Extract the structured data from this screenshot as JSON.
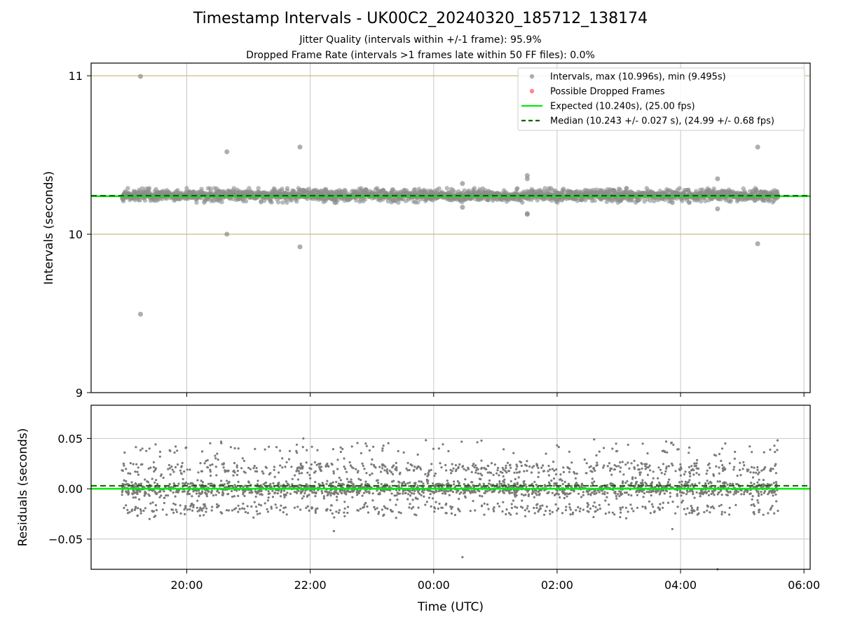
{
  "chart_data": [
    {
      "type": "scatter",
      "title": "Timestamp Intervals - UK00C2_20240320_185712_138174",
      "subtitle_lines": [
        "Jitter Quality (intervals within +/-1 frame): 95.9%",
        "Dropped Frame Rate (intervals >1 frames late within 50 FF files): 0.0%"
      ],
      "xlabel": "",
      "ylabel": "Intervals (seconds)",
      "ylim": [
        9,
        11.08
      ],
      "yticks": [
        9,
        10,
        11
      ],
      "ytick_labels": [
        "9",
        "10",
        "11"
      ],
      "xlim": [
        "18:27",
        "06:06"
      ],
      "x_tick_positions": [
        "20:00",
        "22:00",
        "00:00",
        "02:00",
        "04:00",
        "06:00"
      ],
      "grid": true,
      "legend_position": "top-right",
      "data_range": {
        "x_start": "18:57",
        "x_end": "05:35"
      },
      "legend": [
        {
          "key": "intervals",
          "label": "Intervals, max (10.996s), min (9.495s)",
          "marker": "point",
          "color": "#8c8c8c"
        },
        {
          "key": "dropped",
          "label": "Possible Dropped Frames",
          "marker": "point",
          "color": "#ff5555"
        },
        {
          "key": "expected",
          "label": "Expected (10.240s), (25.00 fps)",
          "marker": "solid-line",
          "color": "#00ee00"
        },
        {
          "key": "median",
          "label": "Median (10.243 +/- 0.027 s), (24.99 +/- 0.68 fps)",
          "marker": "dashed-line",
          "color": "#006400"
        }
      ],
      "expected_interval": 10.24,
      "median_interval": 10.243,
      "reference_lines": [
        10,
        11
      ],
      "typical_band": {
        "center": 10.245,
        "min": 10.2,
        "max": 10.29
      },
      "outliers": [
        {
          "x": "19:15",
          "y": 10.996
        },
        {
          "x": "19:15",
          "y": 9.495
        },
        {
          "x": "20:39",
          "y": 10.52
        },
        {
          "x": "20:39",
          "y": 10.0
        },
        {
          "x": "21:50",
          "y": 10.55
        },
        {
          "x": "21:50",
          "y": 9.92
        },
        {
          "x": "22:24",
          "y": 10.2
        },
        {
          "x": "00:28",
          "y": 10.32
        },
        {
          "x": "00:28",
          "y": 10.17
        },
        {
          "x": "01:31",
          "y": 10.37
        },
        {
          "x": "01:31",
          "y": 10.35
        },
        {
          "x": "01:31",
          "y": 10.13
        },
        {
          "x": "01:31",
          "y": 10.125
        },
        {
          "x": "03:52",
          "y": 10.2
        },
        {
          "x": "04:36",
          "y": 10.35
        },
        {
          "x": "04:36",
          "y": 10.16
        },
        {
          "x": "05:15",
          "y": 10.55
        },
        {
          "x": "05:15",
          "y": 9.94
        }
      ],
      "colors": {
        "intervals": "#8c8c8c",
        "expected": "#00ee00",
        "median": "#006400",
        "refline": "#c8b46e",
        "grid": "#c8c8c8"
      }
    },
    {
      "type": "scatter",
      "title": "",
      "xlabel": "Time (UTC)",
      "ylabel": "Residuals (seconds)",
      "ylim": [
        -0.08,
        0.083
      ],
      "yticks": [
        -0.05,
        0.0,
        0.05
      ],
      "ytick_labels": [
        "−0.05",
        "0.00",
        "0.05"
      ],
      "xlim": [
        "18:27",
        "06:06"
      ],
      "xticks": [
        "20:00",
        "22:00",
        "00:00",
        "02:00",
        "04:00",
        "06:00"
      ],
      "grid": true,
      "data_range": {
        "x_start": "18:57",
        "x_end": "05:35"
      },
      "clusters": [
        {
          "center": 0.0,
          "spread": 0.004,
          "share": 0.62
        },
        {
          "center": 0.02,
          "spread": 0.004,
          "share": 0.2
        },
        {
          "center": -0.02,
          "spread": 0.004,
          "share": 0.14
        },
        {
          "center": 0.04,
          "spread": 0.004,
          "share": 0.04
        }
      ],
      "outliers": [
        {
          "x": "22:23",
          "y": -0.042
        },
        {
          "x": "00:28",
          "y": -0.068
        },
        {
          "x": "03:52",
          "y": -0.04
        },
        {
          "x": "04:36",
          "y": -0.08
        }
      ],
      "expected_residual": 0.0,
      "median_residual": 0.003,
      "colors": {
        "points": "#7a7a7a",
        "expected": "#00ee00",
        "median": "#006400",
        "grid": "#c8c8c8"
      }
    }
  ]
}
